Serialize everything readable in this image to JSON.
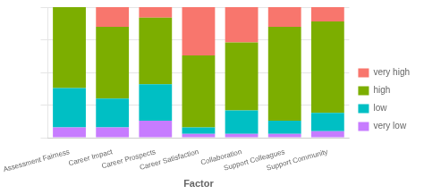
{
  "chart_data": {
    "type": "bar",
    "stacked": true,
    "xlabel": "Factor",
    "categories": [
      "Assessment Fairness",
      "Career Impact",
      "Career Prospects",
      "Career Satisfaction",
      "Collaboration",
      "Support Colleagues",
      "Support Community"
    ],
    "series": [
      {
        "name": "very low",
        "color": "#c77cff",
        "values": [
          0.08,
          0.08,
          0.13,
          0.03,
          0.03,
          0.03,
          0.05
        ]
      },
      {
        "name": "low",
        "color": "#00bfc4",
        "values": [
          0.3,
          0.22,
          0.28,
          0.05,
          0.18,
          0.1,
          0.14
        ]
      },
      {
        "name": "high",
        "color": "#7cae00",
        "values": [
          0.62,
          0.55,
          0.51,
          0.55,
          0.52,
          0.72,
          0.7
        ]
      },
      {
        "name": "very high",
        "color": "#f8766d",
        "values": [
          0.0,
          0.15,
          0.08,
          0.37,
          0.27,
          0.15,
          0.11
        ]
      }
    ],
    "ylim": [
      0,
      1
    ],
    "yticks": [
      0,
      0.25,
      0.5,
      0.75,
      1
    ],
    "grid": true,
    "legend": "right",
    "tick_labels": "x"
  }
}
